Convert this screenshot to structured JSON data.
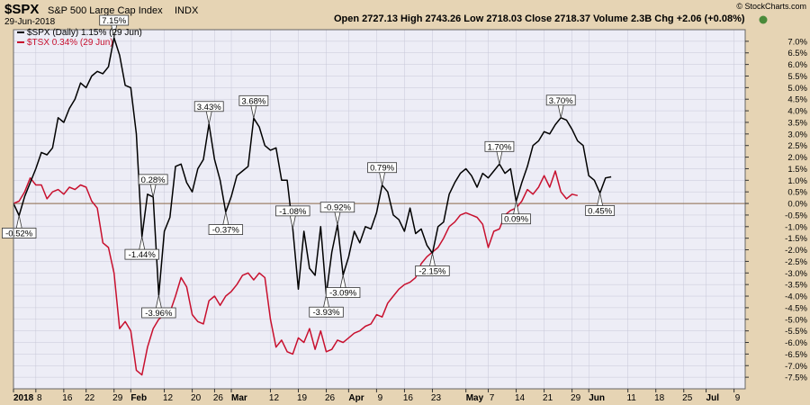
{
  "header": {
    "symbol": "$SPX",
    "name": "S&P 500 Large Cap Index",
    "exchange": "INDX",
    "date": "29-Jun-2018",
    "ohlc": "Open 2727.13  High 2743.26  Low 2718.03  Close 2718.37  Volume 2.3B  Chg +2.06 (+0.08%)",
    "brand": "© StockCharts.com"
  },
  "legend": [
    {
      "label": "$SPX (Daily) 1.15% (29 Jun)",
      "color": "#000000"
    },
    {
      "label": "$TSX 0.34% (29 Jun)",
      "color": "#c8102e"
    }
  ],
  "colors": {
    "spx": "#000000",
    "tsx": "#c8102e",
    "plot_bg": "#ededf6",
    "frame_bg": "#e6d4b4",
    "grid": "#c8c8d8",
    "zero": "#8c6a4a"
  },
  "chart_data": {
    "type": "line",
    "ylim": [
      -8,
      7.5
    ],
    "y_ticks": [
      "7.0%",
      "6.5%",
      "6.0%",
      "5.5%",
      "5.0%",
      "4.5%",
      "4.0%",
      "3.5%",
      "3.0%",
      "2.5%",
      "2.0%",
      "1.5%",
      "1.0%",
      "0.5%",
      "0.0%",
      "-0.5%",
      "-1.0%",
      "-1.5%",
      "-2.0%",
      "-2.5%",
      "-3.0%",
      "-3.5%",
      "-4.0%",
      "-4.5%",
      "-5.0%",
      "-5.5%",
      "-6.0%",
      "-6.5%",
      "-7.0%",
      "-7.5%"
    ],
    "y_tick_values": [
      7.0,
      6.5,
      6.0,
      5.5,
      5.0,
      4.5,
      4.0,
      3.5,
      3.0,
      2.5,
      2.0,
      1.5,
      1.0,
      0.5,
      0.0,
      -0.5,
      -1.0,
      -1.5,
      -2.0,
      -2.5,
      -3.0,
      -3.5,
      -4.0,
      -4.5,
      -5.0,
      -5.5,
      -6.0,
      -6.5,
      -7.0,
      -7.5
    ],
    "x_ticks": [
      {
        "label": "2018",
        "bold": true,
        "t": 0
      },
      {
        "label": "8",
        "bold": false,
        "t": 4
      },
      {
        "label": "16",
        "bold": false,
        "t": 9
      },
      {
        "label": "22",
        "bold": false,
        "t": 13
      },
      {
        "label": "29",
        "bold": false,
        "t": 18
      },
      {
        "label": "Feb",
        "bold": true,
        "t": 21
      },
      {
        "label": "12",
        "bold": false,
        "t": 27
      },
      {
        "label": "20",
        "bold": false,
        "t": 32
      },
      {
        "label": "26",
        "bold": false,
        "t": 36
      },
      {
        "label": "Mar",
        "bold": true,
        "t": 39
      },
      {
        "label": "12",
        "bold": false,
        "t": 46
      },
      {
        "label": "19",
        "bold": false,
        "t": 51
      },
      {
        "label": "26",
        "bold": false,
        "t": 56
      },
      {
        "label": "Apr",
        "bold": true,
        "t": 60
      },
      {
        "label": "9",
        "bold": false,
        "t": 65
      },
      {
        "label": "16",
        "bold": false,
        "t": 70
      },
      {
        "label": "23",
        "bold": false,
        "t": 75
      },
      {
        "label": "May",
        "bold": true,
        "t": 81
      },
      {
        "label": "7",
        "bold": false,
        "t": 85
      },
      {
        "label": "14",
        "bold": false,
        "t": 90
      },
      {
        "label": "21",
        "bold": false,
        "t": 95
      },
      {
        "label": "29",
        "bold": false,
        "t": 100
      },
      {
        "label": "Jun",
        "bold": true,
        "t": 103
      },
      {
        "label": "11",
        "bold": false,
        "t": 110
      },
      {
        "label": "18",
        "bold": false,
        "t": 115
      },
      {
        "label": "25",
        "bold": false,
        "t": 120
      },
      {
        "label": "Jul",
        "bold": true,
        "t": 124
      },
      {
        "label": "9",
        "bold": false,
        "t": 129
      }
    ],
    "t_range": [
      0,
      131
    ],
    "series": [
      {
        "name": "$SPX",
        "color": "#000000",
        "values": [
          [
            0,
            0
          ],
          [
            1,
            -0.52
          ],
          [
            2,
            0.3
          ],
          [
            3,
            0.9
          ],
          [
            4,
            1.5
          ],
          [
            5,
            2.2
          ],
          [
            6,
            2.1
          ],
          [
            7,
            2.4
          ],
          [
            8,
            3.7
          ],
          [
            9,
            3.5
          ],
          [
            10,
            4.1
          ],
          [
            11,
            4.5
          ],
          [
            12,
            5.2
          ],
          [
            13,
            5.0
          ],
          [
            14,
            5.5
          ],
          [
            15,
            5.7
          ],
          [
            16,
            5.6
          ],
          [
            17,
            5.9
          ],
          [
            18,
            7.15
          ],
          [
            19,
            6.4
          ],
          [
            20,
            5.1
          ],
          [
            21,
            5.0
          ],
          [
            22,
            3.0
          ],
          [
            23,
            -1.44
          ],
          [
            24,
            0.4
          ],
          [
            25,
            0.28
          ],
          [
            26,
            -3.96
          ],
          [
            27,
            -1.2
          ],
          [
            28,
            -0.6
          ],
          [
            29,
            1.6
          ],
          [
            30,
            1.7
          ],
          [
            31,
            0.9
          ],
          [
            32,
            0.5
          ],
          [
            33,
            1.5
          ],
          [
            34,
            1.9
          ],
          [
            35,
            3.43
          ],
          [
            36,
            1.9
          ],
          [
            37,
            1.0
          ],
          [
            38,
            -0.37
          ],
          [
            39,
            0.3
          ],
          [
            40,
            1.2
          ],
          [
            41,
            1.4
          ],
          [
            42,
            1.6
          ],
          [
            43,
            3.68
          ],
          [
            44,
            3.3
          ],
          [
            45,
            2.5
          ],
          [
            46,
            2.3
          ],
          [
            47,
            2.4
          ],
          [
            48,
            1.0
          ],
          [
            49,
            1.0
          ],
          [
            50,
            -1.08
          ],
          [
            51,
            -3.7
          ],
          [
            52,
            -1.2
          ],
          [
            53,
            -2.8
          ],
          [
            54,
            -3.1
          ],
          [
            55,
            -1.0
          ],
          [
            56,
            -3.93
          ],
          [
            57,
            -2.1
          ],
          [
            58,
            -0.92
          ],
          [
            59,
            -3.09
          ],
          [
            60,
            -2.3
          ],
          [
            61,
            -1.2
          ],
          [
            62,
            -1.7
          ],
          [
            63,
            -1.0
          ],
          [
            64,
            -1.1
          ],
          [
            65,
            -0.4
          ],
          [
            66,
            0.79
          ],
          [
            67,
            0.5
          ],
          [
            68,
            -0.5
          ],
          [
            69,
            -0.7
          ],
          [
            70,
            -1.2
          ],
          [
            71,
            -0.2
          ],
          [
            72,
            -1.3
          ],
          [
            73,
            -1.1
          ],
          [
            74,
            -1.8
          ],
          [
            75,
            -2.15
          ],
          [
            76,
            -1.0
          ],
          [
            77,
            -0.8
          ],
          [
            78,
            0.4
          ],
          [
            79,
            0.9
          ],
          [
            80,
            1.3
          ],
          [
            81,
            1.5
          ],
          [
            82,
            1.2
          ],
          [
            83,
            0.7
          ],
          [
            84,
            1.3
          ],
          [
            85,
            1.1
          ],
          [
            86,
            1.4
          ],
          [
            87,
            1.7
          ],
          [
            88,
            1.3
          ],
          [
            89,
            1.5
          ],
          [
            90,
            0.09
          ],
          [
            91,
            0.9
          ],
          [
            92,
            1.6
          ],
          [
            93,
            2.5
          ],
          [
            94,
            2.7
          ],
          [
            95,
            3.1
          ],
          [
            96,
            3.0
          ],
          [
            97,
            3.4
          ],
          [
            98,
            3.7
          ],
          [
            99,
            3.6
          ],
          [
            100,
            3.2
          ],
          [
            101,
            2.7
          ],
          [
            102,
            2.5
          ],
          [
            103,
            1.2
          ],
          [
            104,
            1.0
          ],
          [
            105,
            0.45
          ],
          [
            106,
            1.1
          ],
          [
            107,
            1.15
          ]
        ]
      },
      {
        "name": "$TSX",
        "color": "#c8102e",
        "values": [
          [
            0,
            0
          ],
          [
            1,
            0.1
          ],
          [
            2,
            0.5
          ],
          [
            3,
            1.1
          ],
          [
            4,
            0.8
          ],
          [
            5,
            0.8
          ],
          [
            6,
            0.2
          ],
          [
            7,
            0.5
          ],
          [
            8,
            0.6
          ],
          [
            9,
            0.4
          ],
          [
            10,
            0.7
          ],
          [
            11,
            0.6
          ],
          [
            12,
            0.8
          ],
          [
            13,
            0.7
          ],
          [
            14,
            0.1
          ],
          [
            15,
            -0.2
          ],
          [
            16,
            -1.7
          ],
          [
            17,
            -1.9
          ],
          [
            18,
            -3.0
          ],
          [
            19,
            -5.4
          ],
          [
            20,
            -5.1
          ],
          [
            21,
            -5.5
          ],
          [
            22,
            -7.2
          ],
          [
            23,
            -7.4
          ],
          [
            24,
            -6.2
          ],
          [
            25,
            -5.4
          ],
          [
            26,
            -5.0
          ],
          [
            27,
            -4.8
          ],
          [
            28,
            -4.7
          ],
          [
            29,
            -4.0
          ],
          [
            30,
            -3.2
          ],
          [
            31,
            -3.6
          ],
          [
            32,
            -4.8
          ],
          [
            33,
            -5.1
          ],
          [
            34,
            -5.2
          ],
          [
            35,
            -4.2
          ],
          [
            36,
            -4.0
          ],
          [
            37,
            -4.4
          ],
          [
            38,
            -4.0
          ],
          [
            39,
            -3.8
          ],
          [
            40,
            -3.5
          ],
          [
            41,
            -3.1
          ],
          [
            42,
            -3.0
          ],
          [
            43,
            -3.3
          ],
          [
            44,
            -3.0
          ],
          [
            45,
            -3.2
          ],
          [
            46,
            -5.0
          ],
          [
            47,
            -6.2
          ],
          [
            48,
            -5.9
          ],
          [
            49,
            -6.4
          ],
          [
            50,
            -6.5
          ],
          [
            51,
            -5.8
          ],
          [
            52,
            -6.0
          ],
          [
            53,
            -5.4
          ],
          [
            54,
            -6.3
          ],
          [
            55,
            -5.5
          ],
          [
            56,
            -6.4
          ],
          [
            57,
            -6.3
          ],
          [
            58,
            -5.9
          ],
          [
            59,
            -6.0
          ],
          [
            60,
            -5.8
          ],
          [
            61,
            -5.6
          ],
          [
            62,
            -5.5
          ],
          [
            63,
            -5.3
          ],
          [
            64,
            -5.2
          ],
          [
            65,
            -4.8
          ],
          [
            66,
            -4.9
          ],
          [
            67,
            -4.3
          ],
          [
            68,
            -4.0
          ],
          [
            69,
            -3.7
          ],
          [
            70,
            -3.5
          ],
          [
            71,
            -3.4
          ],
          [
            72,
            -3.2
          ],
          [
            73,
            -2.6
          ],
          [
            74,
            -2.3
          ],
          [
            75,
            -2.1
          ],
          [
            76,
            -1.9
          ],
          [
            77,
            -1.5
          ],
          [
            78,
            -1.0
          ],
          [
            79,
            -0.8
          ],
          [
            80,
            -0.5
          ],
          [
            81,
            -0.4
          ],
          [
            82,
            -0.5
          ],
          [
            83,
            -0.6
          ],
          [
            84,
            -0.9
          ],
          [
            85,
            -1.9
          ],
          [
            86,
            -1.2
          ],
          [
            87,
            -1.1
          ],
          [
            88,
            -0.5
          ],
          [
            89,
            -0.3
          ],
          [
            90,
            -0.2
          ],
          [
            91,
            0.1
          ],
          [
            92,
            0.6
          ],
          [
            93,
            0.4
          ],
          [
            94,
            0.7
          ],
          [
            95,
            1.2
          ],
          [
            96,
            0.7
          ],
          [
            97,
            1.4
          ],
          [
            98,
            0.5
          ],
          [
            99,
            0.2
          ],
          [
            100,
            0.4
          ],
          [
            101,
            0.34
          ]
        ]
      }
    ],
    "annotations": [
      {
        "text": "-0.52%",
        "series": 0,
        "t": 1,
        "pos": "below"
      },
      {
        "text": "7.15%",
        "series": 0,
        "t": 18,
        "pos": "above"
      },
      {
        "text": "-1.44%",
        "series": 0,
        "t": 23,
        "pos": "below"
      },
      {
        "text": "0.28%",
        "series": 0,
        "t": 25,
        "pos": "above"
      },
      {
        "text": "-3.96%",
        "series": 0,
        "t": 26,
        "pos": "below"
      },
      {
        "text": "3.43%",
        "series": 0,
        "t": 35,
        "pos": "above"
      },
      {
        "text": "-0.37%",
        "series": 0,
        "t": 38,
        "pos": "below"
      },
      {
        "text": "3.68%",
        "series": 0,
        "t": 43,
        "pos": "above"
      },
      {
        "text": "-1.08%",
        "series": 0,
        "t": 50,
        "pos": "above"
      },
      {
        "text": "-3.93%",
        "series": 0,
        "t": 56,
        "pos": "below"
      },
      {
        "text": "-0.92%",
        "series": 0,
        "t": 58,
        "pos": "above"
      },
      {
        "text": "-3.09%",
        "series": 0,
        "t": 59,
        "pos": "below"
      },
      {
        "text": "0.79%",
        "series": 0,
        "t": 66,
        "pos": "above"
      },
      {
        "text": "-2.15%",
        "series": 0,
        "t": 75,
        "pos": "below"
      },
      {
        "text": "1.70%",
        "series": 0,
        "t": 87,
        "pos": "above"
      },
      {
        "text": "0.09%",
        "series": 0,
        "t": 90,
        "pos": "below"
      },
      {
        "text": "3.70%",
        "series": 0,
        "t": 98,
        "pos": "above"
      },
      {
        "text": "0.45%",
        "series": 0,
        "t": 105,
        "pos": "below"
      }
    ]
  }
}
